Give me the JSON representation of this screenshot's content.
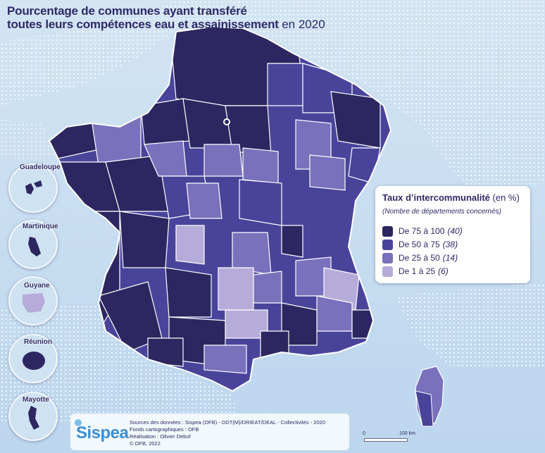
{
  "title": {
    "line1": "Pourcentage de communes ayant transféré",
    "line2": "toutes leurs compétences eau et assainissement",
    "year": "en 2020"
  },
  "legend": {
    "title": "Taux d’intercommunalité",
    "unit": "(en %)",
    "subtitle": "(Nombre de départements concernés)",
    "classes": [
      {
        "label": "De 75 à 100",
        "count": "(40)",
        "color": "#2c2760"
      },
      {
        "label": "De 50 à 75",
        "count": "(38)",
        "color": "#49449a"
      },
      {
        "label": "De 25 à 50",
        "count": "(14)",
        "color": "#7a71bc"
      },
      {
        "label": "De 1 à 25",
        "count": "(6)",
        "color": "#b6acd9"
      }
    ]
  },
  "insets": [
    {
      "name": "Guadeloupe"
    },
    {
      "name": "Martinique"
    },
    {
      "name": "Guyane"
    },
    {
      "name": "Réunion"
    },
    {
      "name": "Mayotte"
    }
  ],
  "credits": {
    "logo": "Sispea",
    "sources": "Sources des données : Sispea (OFB) - DDT(M)/DRIEAT/DEAL - Collectivités - 2020",
    "fonds": "Fonds cartographiques : OFB",
    "realisation": "Réalisation : Olivier Debuf",
    "copyright": "© OFB, 2022"
  },
  "scale": {
    "start": "0",
    "end": "100 km"
  },
  "colors": {
    "sea": "#c6dcf0",
    "land_outside": "#ffffff",
    "border": "#ffffff"
  }
}
